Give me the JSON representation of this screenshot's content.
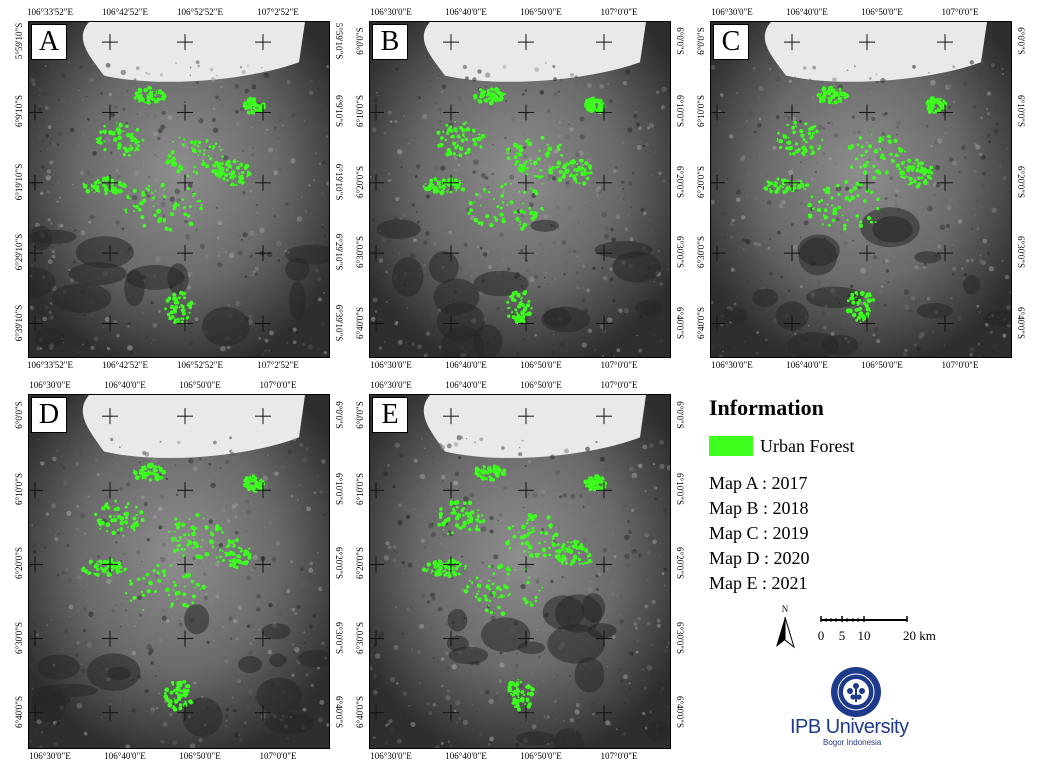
{
  "panels": [
    {
      "letter": "A",
      "top_ticks": [
        "106°33'52\"E",
        "106°42'52\"E",
        "106°52'52\"E",
        "107°2'52\"E"
      ],
      "bottom_ticks": [
        "106°33'52\"E",
        "106°42'52\"E",
        "106°52'52\"E",
        "107°2'52\"E"
      ],
      "left_ticks": [
        "5°59'10\"S",
        "6°9'10\"S",
        "6°19'10\"S",
        "6°29'10\"S",
        "6°39'10\"S"
      ],
      "right_ticks": [
        "5°59'10\"S",
        "6°9'10\"S",
        "6°19'10\"S",
        "6°29'10\"S",
        "6°39'10\"S"
      ]
    },
    {
      "letter": "B",
      "top_ticks": [
        "106°30'0\"E",
        "106°40'0\"E",
        "106°50'0\"E",
        "107°0'0\"E"
      ],
      "bottom_ticks": [
        "106°30'0\"E",
        "106°40'0\"E",
        "106°50'0\"E",
        "107°0'0\"E"
      ],
      "left_ticks": [
        "6°0'0\"S",
        "6°10'0\"S",
        "6°20'0\"S",
        "6°30'0\"S",
        "6°40'0\"S"
      ],
      "right_ticks": [
        "6°0'0\"S",
        "6°10'0\"S",
        "6°20'0\"S",
        "6°30'0\"S",
        "6°40'0\"S"
      ]
    },
    {
      "letter": "C",
      "top_ticks": [
        "106°30'0\"E",
        "106°40'0\"E",
        "106°50'0\"E",
        "107°0'0\"E"
      ],
      "bottom_ticks": [
        "106°30'0\"E",
        "106°40'0\"E",
        "106°50'0\"E",
        "107°0'0\"E"
      ],
      "left_ticks": [
        "6°0'0\"S",
        "6°10'0\"S",
        "6°20'0\"S",
        "6°30'0\"S",
        "6°40'0\"S"
      ],
      "right_ticks": [
        "6°0'0\"S",
        "6°10'0\"S",
        "6°20'0\"S",
        "6°30'0\"S",
        "6°40'0\"S"
      ]
    },
    {
      "letter": "D",
      "top_ticks": [
        "106°30'0\"E",
        "106°40'0\"E",
        "106°50'0\"E",
        "107°0'0\"E"
      ],
      "bottom_ticks": [
        "106°30'0\"E",
        "106°40'0\"E",
        "106°50'0\"E",
        "107°0'0\"E"
      ],
      "left_ticks": [
        "6°0'0\"S",
        "6°10'0\"S",
        "6°20'0\"S",
        "6°30'0\"S",
        "6°40'0\"S"
      ],
      "right_ticks": [
        "6°0'0\"S",
        "6°10'0\"S",
        "6°20'0\"S",
        "6°30'0\"S",
        "6°40'0\"S"
      ]
    },
    {
      "letter": "E",
      "top_ticks": [
        "106°30'0\"E",
        "106°40'0\"E",
        "106°50'0\"E",
        "107°0'0\"E"
      ],
      "bottom_ticks": [
        "106°30'0\"E",
        "106°40'0\"E",
        "106°50'0\"E",
        "107°0'0\"E"
      ],
      "left_ticks": [
        "6°0'0\"S",
        "6°10'0\"S",
        "6°20'0\"S",
        "6°30'0\"S",
        "6°40'0\"S"
      ],
      "right_ticks": [
        "6°0'0\"S",
        "6°10'0\"S",
        "6°20'0\"S",
        "6°30'0\"S",
        "6°40'0\"S"
      ]
    }
  ],
  "legend": {
    "title": "Information",
    "swatch_label": "Urban Forest",
    "swatch_color": "#3cff1e",
    "years": [
      "Map A : 2017",
      "Map B : 2018",
      "Map C : 2019",
      "Map D : 2020",
      "Map E : 2021"
    ]
  },
  "north_arrow": {
    "label": "N",
    "icon": "north-arrow-icon"
  },
  "scale_bar": {
    "labels": [
      "0",
      "5",
      "10",
      "20 km"
    ]
  },
  "logo": {
    "name": "IPB University",
    "subtitle": "Bogor Indonesia",
    "color": "#1f3a8a"
  }
}
